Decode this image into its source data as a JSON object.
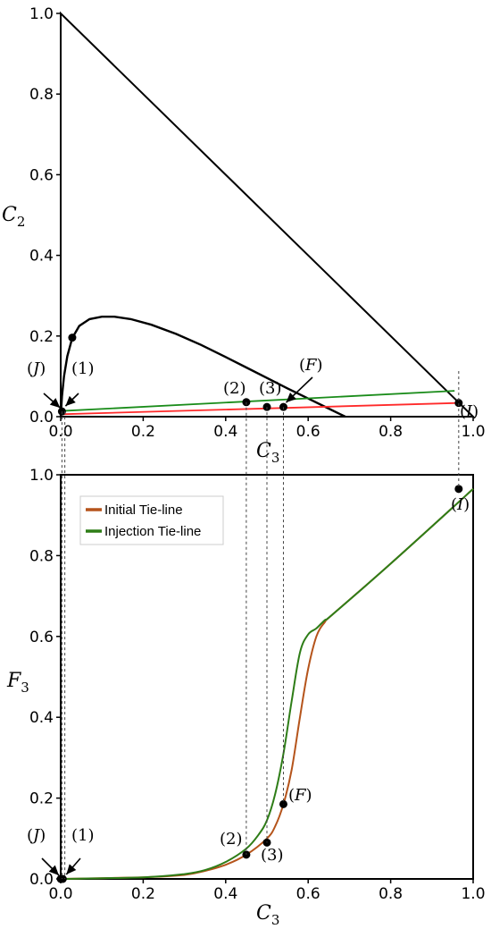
{
  "chart_data": [
    {
      "type": "line",
      "panel": "ternary",
      "xlabel": "C",
      "xlabel_sub": "3",
      "ylabel": "C",
      "ylabel_sub": "2",
      "xlim": [
        0,
        1
      ],
      "ylim": [
        0,
        1
      ],
      "x_ticks": [
        "0.0",
        "0.2",
        "0.4",
        "0.6",
        "0.8",
        "1.0"
      ],
      "y_ticks": [
        "0.0",
        "0.2",
        "0.4",
        "0.6",
        "0.8",
        "1.0"
      ],
      "grid": false,
      "triangle": {
        "x": [
          0,
          0,
          1,
          0
        ],
        "y": [
          0,
          1,
          0,
          0
        ]
      },
      "binodal": {
        "x": [
          0.0,
          0.003,
          0.008,
          0.016,
          0.028,
          0.045,
          0.07,
          0.1,
          0.13,
          0.17,
          0.22,
          0.28,
          0.34,
          0.4,
          0.45,
          0.5,
          0.55,
          0.6,
          0.65,
          0.69
        ],
        "y": [
          0.0,
          0.05,
          0.1,
          0.15,
          0.195,
          0.225,
          0.242,
          0.248,
          0.248,
          0.242,
          0.228,
          0.205,
          0.178,
          0.148,
          0.122,
          0.096,
          0.07,
          0.045,
          0.02,
          0.0
        ]
      },
      "series": [
        {
          "name": "Initial Tie-line",
          "color": "#ff2a2a",
          "x": [
            0.0,
            0.965
          ],
          "y": [
            0.006,
            0.034
          ]
        },
        {
          "name": "Injection Tie-line",
          "color": "#1a8c1a",
          "x": [
            0.0,
            0.955
          ],
          "y": [
            0.014,
            0.064
          ]
        }
      ],
      "points": [
        {
          "label": "(J)",
          "x": 0.003,
          "y": 0.013
        },
        {
          "label": "(1)",
          "x": 0.028,
          "y": 0.196
        },
        {
          "label": "(2)",
          "x": 0.45,
          "y": 0.036
        },
        {
          "label": "(3)",
          "x": 0.5,
          "y": 0.024
        },
        {
          "label": "(F)",
          "x": 0.54,
          "y": 0.024
        },
        {
          "label": "(I)",
          "x": 0.965,
          "y": 0.034
        }
      ]
    },
    {
      "type": "line",
      "panel": "fractional-flow",
      "xlabel": "C",
      "xlabel_sub": "3",
      "ylabel": "F",
      "ylabel_sub": "3",
      "xlim": [
        0,
        1
      ],
      "ylim": [
        0,
        1
      ],
      "x_ticks": [
        "0.0",
        "0.2",
        "0.4",
        "0.6",
        "0.8",
        "1.0"
      ],
      "y_ticks": [
        "0.0",
        "0.2",
        "0.4",
        "0.6",
        "0.8",
        "1.0"
      ],
      "grid": false,
      "legend_position": "top-left",
      "series": [
        {
          "name": "Initial Tie-line",
          "color": "#b5541b",
          "x": [
            0.0,
            0.2,
            0.3,
            0.35,
            0.4,
            0.45,
            0.5,
            0.52,
            0.54,
            0.56,
            0.58,
            0.6,
            0.62,
            0.64,
            0.66,
            0.8,
            1.0
          ],
          "y": [
            0.0,
            0.004,
            0.01,
            0.02,
            0.035,
            0.06,
            0.1,
            0.13,
            0.185,
            0.27,
            0.4,
            0.52,
            0.6,
            0.635,
            0.655,
            0.78,
            0.965
          ]
        },
        {
          "name": "Injection Tie-line",
          "color": "#2e7d17",
          "x": [
            0.0,
            0.2,
            0.3,
            0.35,
            0.4,
            0.45,
            0.48,
            0.5,
            0.52,
            0.54,
            0.56,
            0.58,
            0.6,
            0.62,
            0.64,
            0.66,
            0.8,
            1.0
          ],
          "y": [
            0.0,
            0.004,
            0.012,
            0.022,
            0.042,
            0.075,
            0.11,
            0.145,
            0.21,
            0.31,
            0.44,
            0.56,
            0.605,
            0.62,
            0.64,
            0.655,
            0.78,
            0.965
          ]
        }
      ],
      "points": [
        {
          "label": "(J)",
          "x": 0.0,
          "y": 0.0
        },
        {
          "label": "(1)",
          "x": 0.005,
          "y": 0.0
        },
        {
          "label": "(2)",
          "x": 0.45,
          "y": 0.06
        },
        {
          "label": "(3)",
          "x": 0.5,
          "y": 0.09
        },
        {
          "label": "(F)",
          "x": 0.54,
          "y": 0.185
        },
        {
          "label": "(I)",
          "x": 0.965,
          "y": 0.965
        }
      ],
      "dashed_guides_x": [
        0.003,
        0.01,
        0.45,
        0.5,
        0.54,
        0.965
      ]
    }
  ]
}
